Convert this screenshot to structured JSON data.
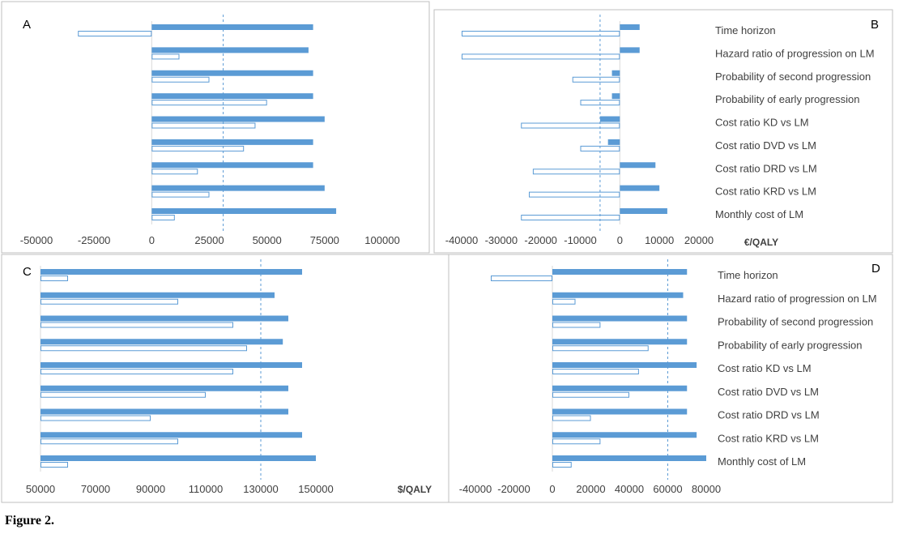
{
  "figure": {
    "caption": "Figure 2."
  },
  "colors": {
    "filled": "#5B9BD5",
    "hollow_stroke": "#5B9BD5",
    "hollow_fill": "#ffffff",
    "reference": "#5B9BD5",
    "text": "#404040",
    "border": "#BFBFBF"
  },
  "chart_data": [
    {
      "panel": "A",
      "type": "bar",
      "orientation": "horizontal",
      "categories": [
        "Time horizon",
        "Hazard ratio of progression on LM",
        "Probability of second progression",
        "Probability of early progression",
        "Cost ratio KD vs LM",
        "Cost ratio DVD vs LM",
        "Cost ratio DRD vs LM",
        "Cost ratio KRD vs LM",
        "Monthly cost of LM"
      ],
      "show_category_labels": false,
      "series": [
        {
          "style": "filled",
          "values": [
            70000,
            68000,
            70000,
            70000,
            75000,
            70000,
            70000,
            75000,
            80000
          ]
        },
        {
          "style": "hollow",
          "values": [
            -32000,
            12000,
            25000,
            50000,
            45000,
            40000,
            20000,
            25000,
            10000
          ]
        }
      ],
      "xlim": [
        -50000,
        100000
      ],
      "xticks": [
        -50000,
        -25000,
        0,
        25000,
        50000,
        75000,
        100000
      ],
      "tick_labels": [
        "-50000",
        "-25000",
        "0",
        "25000",
        "50000",
        "75000",
        "100000"
      ],
      "reference_line": 31000,
      "unit_label": ""
    },
    {
      "panel": "B",
      "type": "bar",
      "orientation": "horizontal",
      "categories": [
        "Time horizon",
        "Hazard ratio of progression on LM",
        "Probability of second progression",
        "Probability of early progression",
        "Cost ratio KD vs LM",
        "Cost ratio DVD vs LM",
        "Cost ratio DRD vs LM",
        "Cost ratio KRD vs LM",
        "Monthly cost of LM"
      ],
      "show_category_labels": true,
      "series": [
        {
          "style": "filled",
          "values": [
            5000,
            5000,
            -2000,
            -2000,
            -5000,
            -3000,
            9000,
            10000,
            12000
          ]
        },
        {
          "style": "hollow",
          "values": [
            -40000,
            -40000,
            -12000,
            -10000,
            -25000,
            -10000,
            -22000,
            -23000,
            -25000
          ]
        }
      ],
      "xlim": [
        -40000,
        20000
      ],
      "xticks": [
        -40000,
        -30000,
        -20000,
        -10000,
        0,
        10000,
        20000
      ],
      "tick_labels": [
        "-40000",
        "-30000",
        "-20000",
        "-10000",
        "0",
        "10000",
        "20000"
      ],
      "reference_line": -5000,
      "unit_label": "€/QALY"
    },
    {
      "panel": "C",
      "type": "bar",
      "orientation": "horizontal",
      "categories": [
        "Time horizon",
        "Hazard ratio of progression on LM",
        "Probability of second progression",
        "Probability of early progression",
        "Cost ratio KD vs LM",
        "Cost ratio DVD vs LM",
        "Cost ratio DRD vs LM",
        "Cost ratio KRD vs LM",
        "Monthly cost of LM"
      ],
      "show_category_labels": false,
      "series": [
        {
          "style": "filled",
          "values": [
            145000,
            135000,
            140000,
            138000,
            145000,
            140000,
            140000,
            145000,
            150000
          ]
        },
        {
          "style": "hollow",
          "values": [
            60000,
            100000,
            120000,
            125000,
            120000,
            110000,
            90000,
            100000,
            60000
          ]
        }
      ],
      "xlim": [
        50000,
        150000
      ],
      "xticks": [
        50000,
        70000,
        90000,
        110000,
        130000,
        150000
      ],
      "tick_labels": [
        "50000",
        "70000",
        "90000",
        "110000",
        "130000",
        "150000"
      ],
      "reference_line": 130000,
      "unit_label": "$/QALY"
    },
    {
      "panel": "D",
      "type": "bar",
      "orientation": "horizontal",
      "categories": [
        "Time horizon",
        "Hazard ratio of progression on LM",
        "Probability of second progression",
        "Probability of early progression",
        "Cost ratio KD vs LM",
        "Cost ratio DVD vs LM",
        "Cost ratio DRD vs LM",
        "Cost ratio KRD vs LM",
        "Monthly cost of LM"
      ],
      "show_category_labels": true,
      "series": [
        {
          "style": "filled",
          "values": [
            70000,
            68000,
            70000,
            70000,
            75000,
            70000,
            70000,
            75000,
            80000
          ]
        },
        {
          "style": "hollow",
          "values": [
            -32000,
            12000,
            25000,
            50000,
            45000,
            40000,
            20000,
            25000,
            10000
          ]
        }
      ],
      "xlim": [
        -40000,
        80000
      ],
      "xticks": [
        -40000,
        -20000,
        0,
        20000,
        40000,
        60000,
        80000
      ],
      "tick_labels": [
        "-40000",
        "-20000",
        "0",
        "20000",
        "40000",
        "60000",
        "80000"
      ],
      "reference_line": 60000,
      "unit_label": ""
    }
  ]
}
